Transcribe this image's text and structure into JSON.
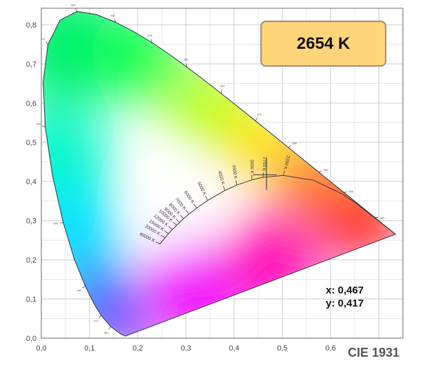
{
  "chart_data": {
    "type": "scatter",
    "title": "CIE 1931",
    "xlim": [
      0,
      0.75
    ],
    "ylim": [
      0,
      0.84
    ],
    "grid": true,
    "x_ticks": [
      "0,0",
      "0,1",
      "0,2",
      "0,3",
      "0,4",
      "0,5",
      "0,6"
    ],
    "y_ticks": [
      "0,0",
      "0,1",
      "0,2",
      "0,3",
      "0,4",
      "0,5",
      "0,6",
      "0,7",
      "0,8"
    ],
    "spectral_locus": [
      {
        "nm": 380,
        "x": 0.1741,
        "y": 0.005
      },
      {
        "nm": 440,
        "x": 0.1644,
        "y": 0.0109
      },
      {
        "nm": 450,
        "x": 0.1566,
        "y": 0.0177
      },
      {
        "nm": 460,
        "x": 0.144,
        "y": 0.0297
      },
      {
        "nm": 470,
        "x": 0.1241,
        "y": 0.0578
      },
      {
        "nm": 475,
        "x": 0.1096,
        "y": 0.0868
      },
      {
        "nm": 480,
        "x": 0.0913,
        "y": 0.1327
      },
      {
        "nm": 485,
        "x": 0.0687,
        "y": 0.2007
      },
      {
        "nm": 490,
        "x": 0.0454,
        "y": 0.295
      },
      {
        "nm": 495,
        "x": 0.0235,
        "y": 0.4127
      },
      {
        "nm": 500,
        "x": 0.0082,
        "y": 0.5384
      },
      {
        "nm": 505,
        "x": 0.0039,
        "y": 0.6548
      },
      {
        "nm": 510,
        "x": 0.0139,
        "y": 0.7502
      },
      {
        "nm": 515,
        "x": 0.0389,
        "y": 0.812
      },
      {
        "nm": 520,
        "x": 0.0743,
        "y": 0.8338
      },
      {
        "nm": 525,
        "x": 0.1142,
        "y": 0.8262
      },
      {
        "nm": 530,
        "x": 0.1547,
        "y": 0.8059
      },
      {
        "nm": 535,
        "x": 0.1929,
        "y": 0.7816
      },
      {
        "nm": 540,
        "x": 0.2296,
        "y": 0.7543
      },
      {
        "nm": 545,
        "x": 0.2658,
        "y": 0.7243
      },
      {
        "nm": 550,
        "x": 0.3016,
        "y": 0.6923
      },
      {
        "nm": 555,
        "x": 0.3373,
        "y": 0.6589
      },
      {
        "nm": 560,
        "x": 0.3731,
        "y": 0.6245
      },
      {
        "nm": 565,
        "x": 0.4087,
        "y": 0.5896
      },
      {
        "nm": 570,
        "x": 0.4441,
        "y": 0.5547
      },
      {
        "nm": 575,
        "x": 0.4788,
        "y": 0.5202
      },
      {
        "nm": 580,
        "x": 0.5125,
        "y": 0.4866
      },
      {
        "nm": 585,
        "x": 0.5448,
        "y": 0.4544
      },
      {
        "nm": 590,
        "x": 0.5752,
        "y": 0.4242
      },
      {
        "nm": 595,
        "x": 0.6029,
        "y": 0.3965
      },
      {
        "nm": 600,
        "x": 0.627,
        "y": 0.3725
      },
      {
        "nm": 610,
        "x": 0.6658,
        "y": 0.334
      },
      {
        "nm": 620,
        "x": 0.6915,
        "y": 0.3083
      },
      {
        "nm": 630,
        "x": 0.7079,
        "y": 0.292
      },
      {
        "nm": 640,
        "x": 0.719,
        "y": 0.2809
      },
      {
        "nm": 700,
        "x": 0.7347,
        "y": 0.2653
      }
    ],
    "wavelength_labels": [
      460,
      470,
      480,
      490,
      500,
      510,
      520,
      530,
      540,
      550,
      560,
      570,
      580,
      590,
      600,
      620
    ],
    "planckian_locus": [
      {
        "label": "40000 K",
        "x": 0.2461,
        "y": 0.2404
      },
      {
        "label": "20000 K",
        "x": 0.2565,
        "y": 0.2564
      },
      {
        "label": "15000 K",
        "x": 0.2637,
        "y": 0.2669
      },
      {
        "label": "12000 K",
        "x": 0.2719,
        "y": 0.2776
      },
      {
        "label": "10000 K",
        "x": 0.2807,
        "y": 0.2883
      },
      {
        "label": "9000 K",
        "x": 0.2869,
        "y": 0.2956
      },
      {
        "label": "8000 K",
        "x": 0.2952,
        "y": 0.3051
      },
      {
        "label": "7000 K",
        "x": 0.3064,
        "y": 0.3166
      },
      {
        "label": "6000 K",
        "x": 0.3221,
        "y": 0.3318
      },
      {
        "label": "5000 K",
        "x": 0.3451,
        "y": 0.3516
      },
      {
        "label": "4000 K",
        "x": 0.3805,
        "y": 0.3768
      },
      {
        "label": "3500 K",
        "x": 0.4053,
        "y": 0.3907
      },
      {
        "label": "3000 K",
        "x": 0.4369,
        "y": 0.4041
      },
      {
        "label": "2700 K",
        "x": 0.4599,
        "y": 0.4106
      },
      {
        "label": "2200 K",
        "x": 0.5019,
        "y": 0.4152
      },
      {
        "label": "",
        "x": 0.5646,
        "y": 0.4029
      },
      {
        "label": "",
        "x": 0.6251,
        "y": 0.3674
      },
      {
        "label": "",
        "x": 0.6528,
        "y": 0.3444
      }
    ],
    "measured_point": {
      "x": 0.467,
      "y": 0.417
    }
  },
  "cct_display": "2654 K",
  "readout": {
    "x_text": "x: 0,467",
    "y_text": "y: 0,417"
  },
  "footer_label": "CIE 1931",
  "colors": {
    "box_fill": "#fdd47a",
    "box_border": "#9a9078",
    "grid_major": "#c8c8c8",
    "grid_minor": "#e6e6e6"
  }
}
